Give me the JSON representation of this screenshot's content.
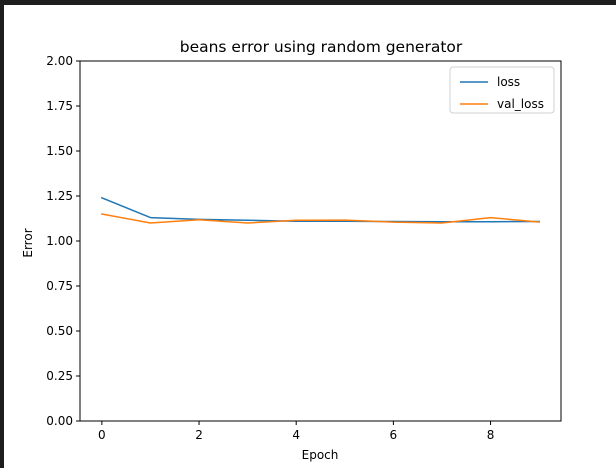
{
  "chart_data": {
    "type": "line",
    "title": "beans error using random generator",
    "xlabel": "Epoch",
    "ylabel": "Error",
    "xlim": [
      -0.45,
      9.45
    ],
    "ylim": [
      0,
      2.0
    ],
    "xticks": [
      0,
      2,
      4,
      6,
      8
    ],
    "xtick_labels": [
      "0",
      "2",
      "4",
      "6",
      "8"
    ],
    "yticks": [
      0,
      0.25,
      0.5,
      0.75,
      1.0,
      1.25,
      1.5,
      1.75,
      2.0
    ],
    "ytick_labels": [
      "0.00",
      "0.25",
      "0.50",
      "0.75",
      "1.00",
      "1.25",
      "1.50",
      "1.75",
      "2.00"
    ],
    "grid": false,
    "legend_position": "top-right",
    "x": [
      0,
      1,
      2,
      3,
      4,
      5,
      6,
      7,
      8,
      9
    ],
    "series": [
      {
        "name": "loss",
        "color": "#1f77b4",
        "values": [
          1.24,
          1.13,
          1.12,
          1.115,
          1.11,
          1.11,
          1.108,
          1.107,
          1.107,
          1.108
        ]
      },
      {
        "name": "val_loss",
        "color": "#ff7f0e",
        "values": [
          1.15,
          1.1,
          1.118,
          1.1,
          1.115,
          1.116,
          1.105,
          1.1,
          1.13,
          1.105
        ]
      }
    ]
  }
}
